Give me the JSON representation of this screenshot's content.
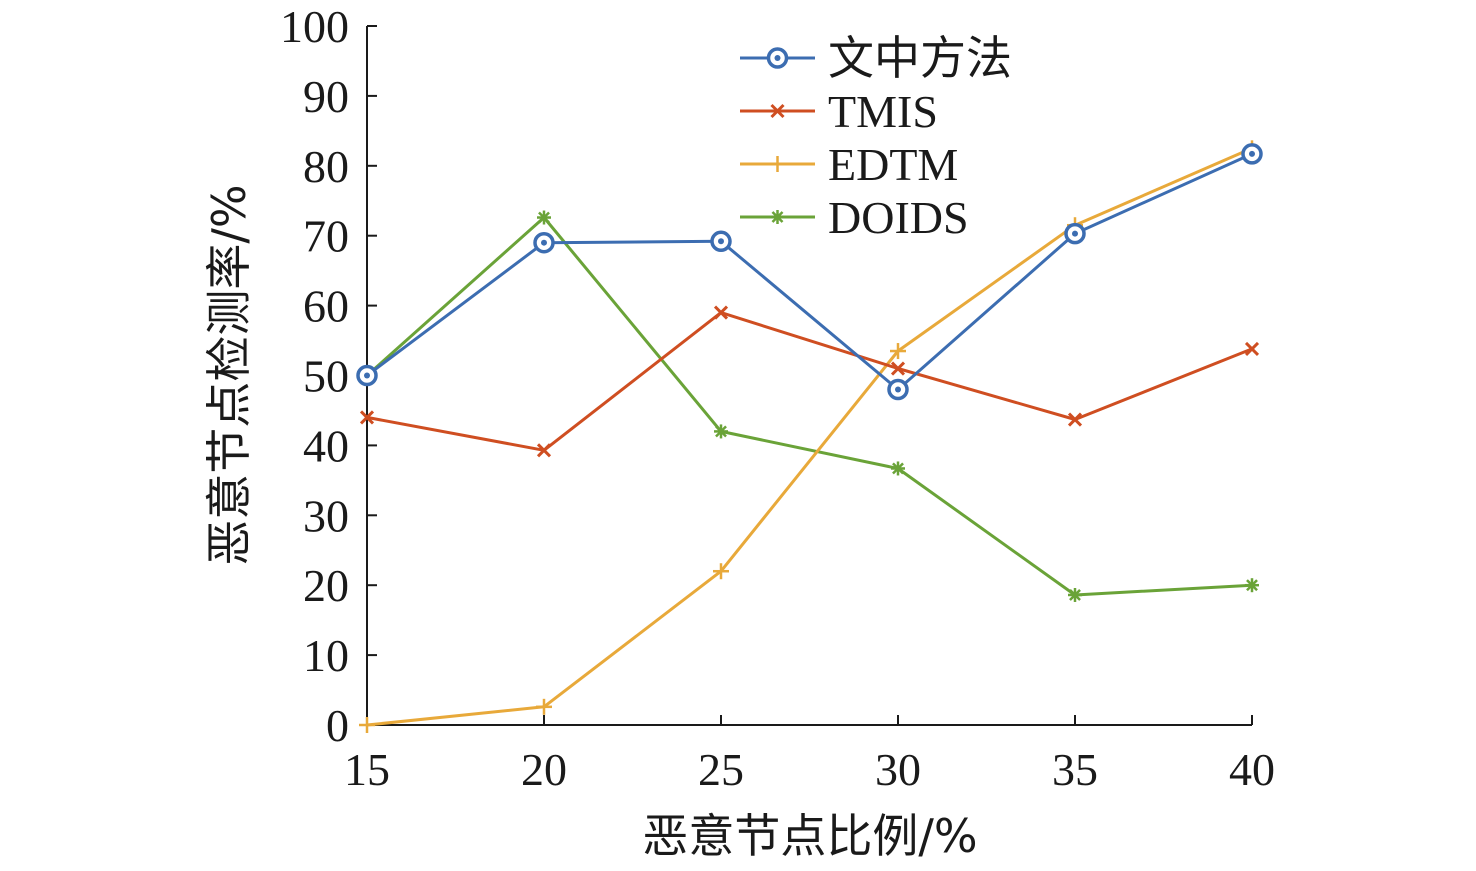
{
  "chart_data": {
    "type": "line",
    "xlabel": "恶意节点比例/%",
    "ylabel": "恶意节点检测率/%",
    "x": [
      15,
      20,
      25,
      30,
      35,
      40
    ],
    "xticks": [
      15,
      20,
      25,
      30,
      35,
      40
    ],
    "yticks": [
      0,
      10,
      20,
      30,
      40,
      50,
      60,
      70,
      80,
      90,
      100
    ],
    "xlim": [
      15,
      40
    ],
    "ylim": [
      0,
      100
    ],
    "grid": false,
    "legend_position": "top-right",
    "series": [
      {
        "name": "文中方法",
        "color": "#3c6db1",
        "marker": "circle-dot",
        "values": [
          50,
          69,
          69.2,
          48,
          70.3,
          81.7
        ]
      },
      {
        "name": "TMIS",
        "color": "#cf4e21",
        "marker": "x",
        "values": [
          44,
          39.3,
          59,
          51,
          43.7,
          53.8
        ]
      },
      {
        "name": "EDTM",
        "color": "#e8a93a",
        "marker": "plus",
        "values": [
          0,
          2.6,
          22,
          53.5,
          71.5,
          82.5
        ]
      },
      {
        "name": "DOIDS",
        "color": "#6aa338",
        "marker": "asterisk",
        "values": [
          50,
          72.6,
          42,
          36.7,
          18.6,
          20
        ]
      }
    ]
  }
}
